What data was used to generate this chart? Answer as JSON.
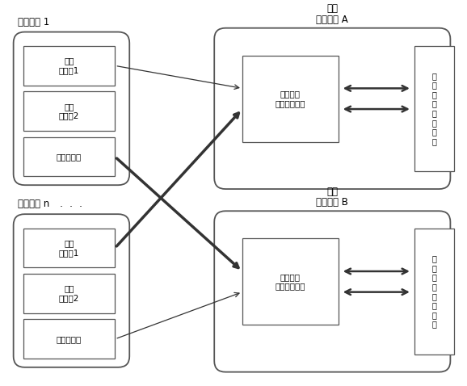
{
  "bg_color": "#ffffff",
  "node1_label": "计算节点 1",
  "noden_label": "计算节点 n",
  "node1_adapters": [
    "扩展\n适配器1",
    "扩展\n适配器2",
    "集成适配器"
  ],
  "noden_adapters": [
    "扩展\n适配器1",
    "扩展\n适配器2",
    "集成适配器"
  ],
  "moduleA_title1": "网络",
  "moduleA_title2": "交换模块 A",
  "moduleA_inner_label": "万兆网络\n交换适配模块",
  "moduleB_title1": "网络",
  "moduleB_title2": "交换模块 B",
  "moduleB_inner_label": "千兆网络\n交换适配模块",
  "ext_box_label": "对\n外\n数\n据\n通\n讯\n模\n块",
  "dots": "·  ·  ·",
  "label_fontsize": 8.5,
  "adapter_fontsize": 7.5,
  "inner_fontsize": 7.5,
  "ext_fontsize": 7.0,
  "edge_color": "#555555",
  "arrow_color": "#333333"
}
